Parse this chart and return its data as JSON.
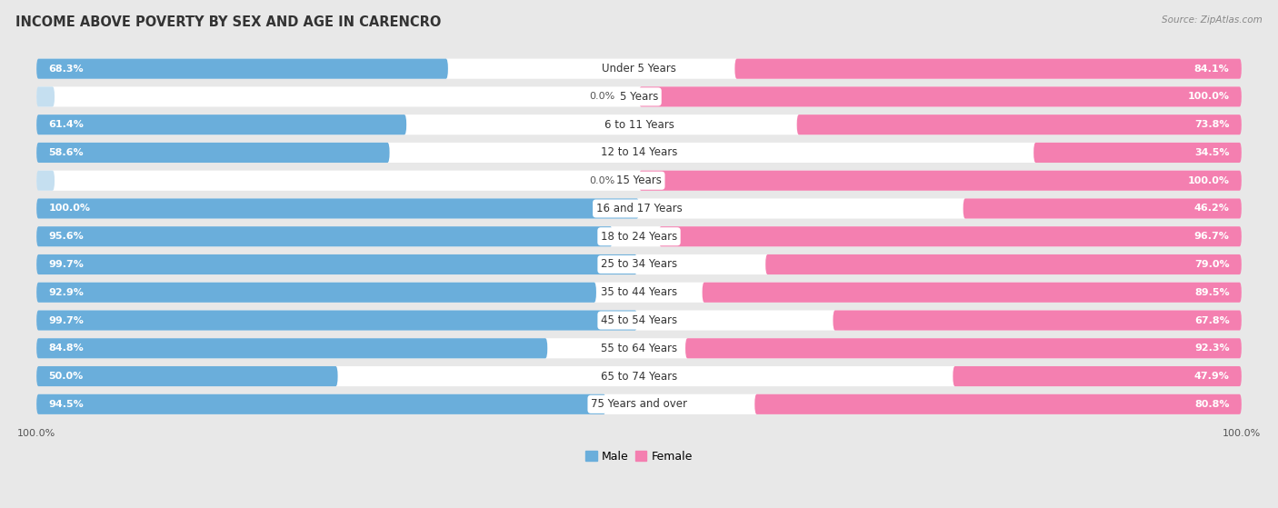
{
  "title": "INCOME ABOVE POVERTY BY SEX AND AGE IN CARENCRO",
  "source": "Source: ZipAtlas.com",
  "categories": [
    "Under 5 Years",
    "5 Years",
    "6 to 11 Years",
    "12 to 14 Years",
    "15 Years",
    "16 and 17 Years",
    "18 to 24 Years",
    "25 to 34 Years",
    "35 to 44 Years",
    "45 to 54 Years",
    "55 to 64 Years",
    "65 to 74 Years",
    "75 Years and over"
  ],
  "male_values": [
    68.3,
    0.0,
    61.4,
    58.6,
    0.0,
    100.0,
    95.6,
    99.7,
    92.9,
    99.7,
    84.8,
    50.0,
    94.5
  ],
  "female_values": [
    84.1,
    100.0,
    73.8,
    34.5,
    100.0,
    46.2,
    96.7,
    79.0,
    89.5,
    67.8,
    92.3,
    47.9,
    80.8
  ],
  "male_color": "#6aaedb",
  "female_color": "#f47fb0",
  "male_light_color": "#c5dff0",
  "female_light_color": "#f9c0d4",
  "background_color": "#e8e8e8",
  "row_bg_color": "#ffffff",
  "title_fontsize": 10.5,
  "label_fontsize": 8.5,
  "value_fontsize": 8,
  "axis_label_fontsize": 8,
  "legend_fontsize": 9
}
